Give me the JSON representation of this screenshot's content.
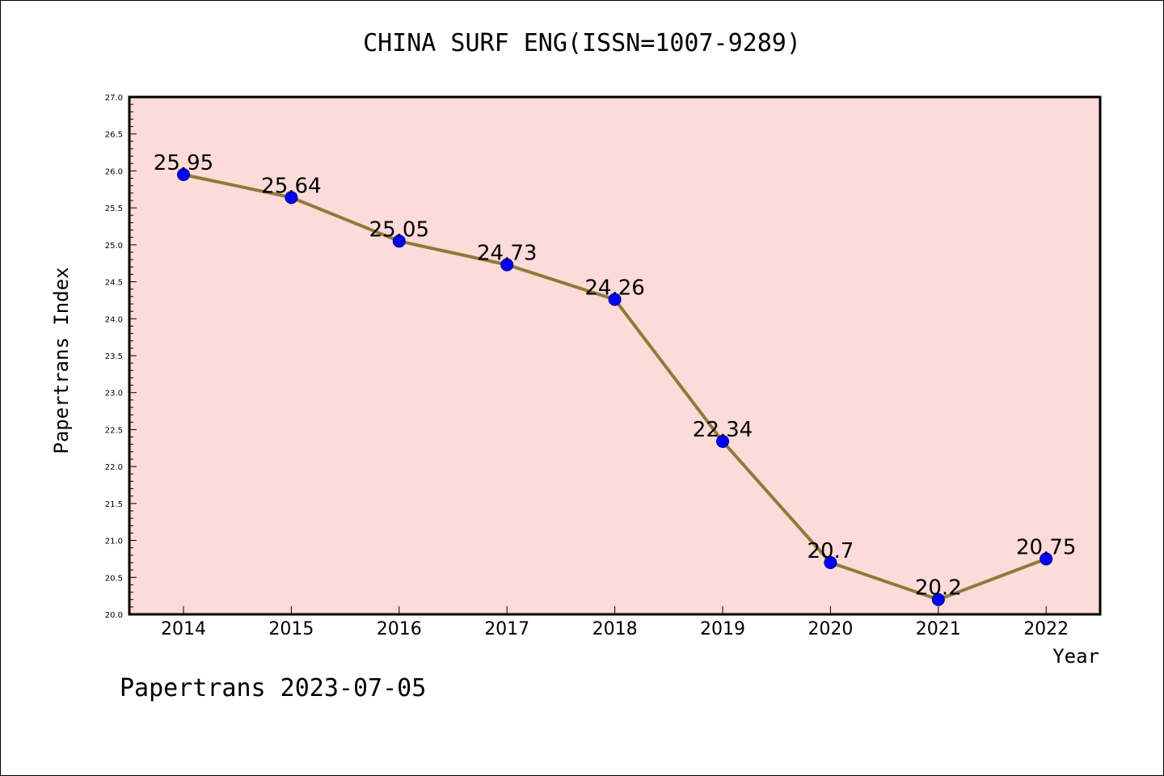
{
  "chart_data": {
    "type": "line",
    "title": "CHINA SURF ENG(ISSN=1007-9289)",
    "xlabel": "Year",
    "ylabel": "Papertrans Index",
    "x": [
      "2014",
      "2015",
      "2016",
      "2017",
      "2018",
      "2019",
      "2020",
      "2021",
      "2022"
    ],
    "series": [
      {
        "values": [
          25.95,
          25.64,
          25.05,
          24.73,
          24.26,
          22.34,
          20.7,
          20.2,
          20.75
        ]
      }
    ],
    "data_labels": [
      "25.95",
      "25.64",
      "25.05",
      "24.73",
      "24.26",
      "22.34",
      "20.7",
      "20.2",
      "20.75"
    ],
    "ylim": [
      20.0,
      27.0
    ],
    "yticks": [
      "20.0",
      "20.5",
      "21.0",
      "21.5",
      "22.0",
      "22.5",
      "23.0",
      "23.5",
      "24.0",
      "24.5",
      "25.0",
      "25.5",
      "26.0",
      "26.5",
      "27.0"
    ],
    "grid": false,
    "colors": {
      "plot_background": "#fddbd9",
      "line": "#8f7a3a",
      "marker": "#0000ff"
    }
  },
  "footer": "Papertrans 2023-07-05"
}
